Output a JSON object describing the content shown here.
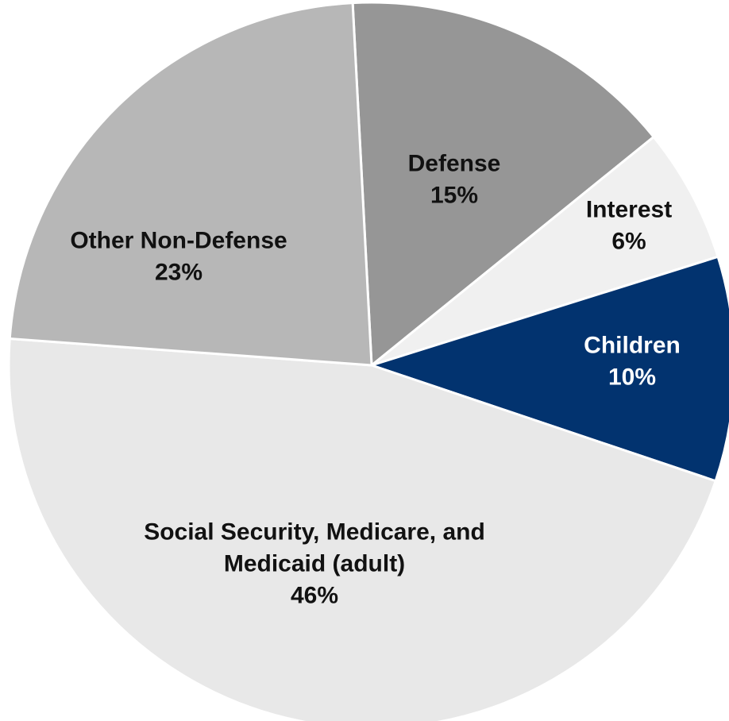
{
  "chart_data": {
    "type": "pie",
    "title": "",
    "start_angle_deg": -93,
    "direction": "clockwise",
    "slices": [
      {
        "name": "Defense",
        "label_lines": [
          "Defense",
          "15%"
        ],
        "value": 15,
        "color": "#969696",
        "label_color": "#111111"
      },
      {
        "name": "Interest",
        "label_lines": [
          "Interest",
          "6%"
        ],
        "value": 6,
        "color": "#f0f0f0",
        "label_color": "#111111"
      },
      {
        "name": "Children",
        "label_lines": [
          "Children",
          "10%"
        ],
        "value": 10,
        "color": "#02336f",
        "label_color": "#ffffff"
      },
      {
        "name": "Social Security, Medicare, and Medicaid (adult)",
        "label_lines": [
          "Social Security, Medicare, and",
          "Medicaid (adult)",
          "46%"
        ],
        "value": 46,
        "color": "#e8e8e8",
        "label_color": "#111111"
      },
      {
        "name": "Other Non-Defense",
        "label_lines": [
          "Other Non-Defense",
          "23%"
        ],
        "value": 23,
        "color": "#b7b7b7",
        "label_color": "#111111"
      }
    ]
  }
}
